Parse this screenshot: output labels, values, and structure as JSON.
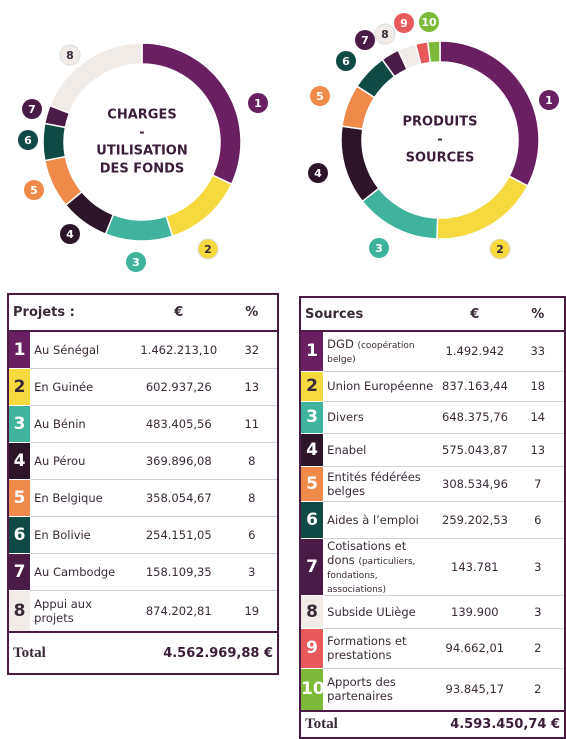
{
  "chart_data": [
    {
      "type": "donut",
      "center_text": [
        "CHARGES",
        "-",
        "UTILISATION",
        "DES FONDS"
      ],
      "categories": [
        "1",
        "2",
        "3",
        "4",
        "5",
        "6",
        "7",
        "8"
      ],
      "values": [
        32,
        13,
        11,
        8,
        8,
        6,
        3,
        19
      ],
      "colors": [
        "#6b1f63",
        "#f6d83f",
        "#3fb39b",
        "#2c1529",
        "#ef8a4a",
        "#0f4a45",
        "#4a1b45",
        "#f1ece7"
      ]
    },
    {
      "type": "donut",
      "center_text": [
        "PRODUITS",
        "-",
        "SOURCES"
      ],
      "categories": [
        "1",
        "2",
        "3",
        "4",
        "5",
        "6",
        "7",
        "8",
        "9",
        "10"
      ],
      "values": [
        33,
        18,
        14,
        13,
        7,
        6,
        3,
        3,
        2,
        2
      ],
      "colors": [
        "#6b1f63",
        "#f6d83f",
        "#3fb39b",
        "#2c1529",
        "#ef8a4a",
        "#0f4a45",
        "#4a1b45",
        "#f1ece7",
        "#e85a5a",
        "#7dba3a"
      ]
    }
  ],
  "tables": [
    {
      "header": [
        "Projets :",
        "€",
        "%"
      ],
      "rows": [
        {
          "num": "1",
          "label": "Au Sénégal",
          "amount": "1.462.213,10",
          "pct": "32"
        },
        {
          "num": "2",
          "label": "En Guinée",
          "amount": "602.937,26",
          "pct": "13"
        },
        {
          "num": "3",
          "label": "Au Bénin",
          "amount": "483.405,56",
          "pct": "11"
        },
        {
          "num": "4",
          "label": "Au Pérou",
          "amount": "369.896,08",
          "pct": "8"
        },
        {
          "num": "5",
          "label": "En Belgique",
          "amount": "358.054,67",
          "pct": "8"
        },
        {
          "num": "6",
          "label": "En Bolivie",
          "amount": "254.151,05",
          "pct": "6"
        },
        {
          "num": "7",
          "label": "Au Cambodge",
          "amount": "158.109,35",
          "pct": "3"
        },
        {
          "num": "8",
          "label": "Appui aux projets",
          "amount": "874.202,81",
          "pct": "19"
        }
      ],
      "total_label": "Total",
      "total": "4.562.969,88 €"
    },
    {
      "header": [
        "Sources",
        "€",
        "%"
      ],
      "rows": [
        {
          "num": "1",
          "label": "DGD",
          "note": "(coopération belge)",
          "amount": "1.492.942",
          "pct": "33"
        },
        {
          "num": "2",
          "label": "Union Européenne",
          "amount": "837.163,44",
          "pct": "18"
        },
        {
          "num": "3",
          "label": "Divers",
          "amount": "648.375,76",
          "pct": "14"
        },
        {
          "num": "4",
          "label": "Enabel",
          "amount": "575.043,87",
          "pct": "13"
        },
        {
          "num": "5",
          "label": "Entités fédérées belges",
          "amount": "308.534,96",
          "pct": "7"
        },
        {
          "num": "6",
          "label": "Aides à l’emploi",
          "amount": "259.202,53",
          "pct": "6"
        },
        {
          "num": "7",
          "label": "Cotisations et dons",
          "note": "(particuliers, fondations, associations)",
          "amount": "143.781",
          "pct": "3"
        },
        {
          "num": "8",
          "label": "Subside ULiège",
          "amount": "139.900",
          "pct": "3"
        },
        {
          "num": "9",
          "label": "Formations et prestations",
          "amount": "94.662,01",
          "pct": "2"
        },
        {
          "num": "10",
          "label": "Apports des partenaires",
          "amount": "93.845,17",
          "pct": "2"
        }
      ],
      "total_label": "Total",
      "total": "4.593.450,74 €"
    }
  ]
}
